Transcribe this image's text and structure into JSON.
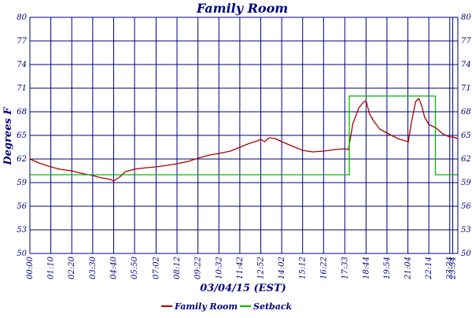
{
  "chart_data": {
    "type": "line",
    "title": "Family Room",
    "xlabel": "03/04/15 (EST)",
    "ylabel": "Degrees F",
    "ylim": [
      50,
      80
    ],
    "xlim_hours": [
      0,
      23.85
    ],
    "yticks": [
      50,
      53,
      56,
      59,
      62,
      65,
      68,
      71,
      74,
      77,
      80
    ],
    "xtick_labels": [
      "00:00",
      "01:10",
      "02:20",
      "03:30",
      "04:40",
      "05:50",
      "07:02",
      "08:12",
      "09:22",
      "10:32",
      "11:42",
      "12:52",
      "14:02",
      "15:12",
      "16:22",
      "17:33",
      "18:44",
      "19:54",
      "21:04",
      "22:14",
      "23:24",
      "23:34"
    ],
    "grid": true,
    "legend_position": "bottom",
    "series": [
      {
        "name": "Family Room",
        "color": "#aa0000",
        "x": [
          "00:00",
          "00:30",
          "01:10",
          "01:40",
          "02:20",
          "02:50",
          "03:30",
          "04:00",
          "04:30",
          "04:40",
          "05:00",
          "05:20",
          "05:50",
          "06:30",
          "07:02",
          "07:40",
          "08:12",
          "08:50",
          "09:22",
          "10:00",
          "10:32",
          "11:10",
          "11:42",
          "12:15",
          "12:40",
          "12:52",
          "13:05",
          "13:20",
          "13:40",
          "14:02",
          "14:40",
          "15:12",
          "15:45",
          "16:22",
          "17:00",
          "17:33",
          "17:45",
          "18:00",
          "18:20",
          "18:35",
          "18:44",
          "18:55",
          "19:10",
          "19:30",
          "19:54",
          "20:30",
          "21:04",
          "21:05",
          "21:15",
          "21:30",
          "21:40",
          "21:50",
          "22:00",
          "22:14",
          "22:40",
          "23:00",
          "23:24",
          "23:34",
          "23:50"
        ],
        "y": [
          62,
          61.5,
          61,
          60.7,
          60.5,
          60.2,
          59.9,
          59.6,
          59.4,
          59.2,
          59.7,
          60.4,
          60.7,
          60.9,
          61,
          61.2,
          61.4,
          61.7,
          62.1,
          62.5,
          62.7,
          63,
          63.5,
          64,
          64.3,
          64.5,
          64.2,
          64.7,
          64.6,
          64.2,
          63.6,
          63.1,
          62.9,
          63,
          63.2,
          63.3,
          63.2,
          66.5,
          68.5,
          69.2,
          69.4,
          67.8,
          66.8,
          65.8,
          65.3,
          64.6,
          64.2,
          64.1,
          66.5,
          69.3,
          69.7,
          68.8,
          67.3,
          66.4,
          65.9,
          65.2,
          64.8,
          64.8,
          64.6
        ]
      },
      {
        "name": "Setback",
        "color": "#00bb00",
        "x": [
          "00:00",
          "17:48",
          "17:48",
          "22:36",
          "22:36",
          "23:50"
        ],
        "y": [
          60,
          60,
          70,
          70,
          60,
          60
        ]
      }
    ]
  },
  "legend": {
    "items": [
      {
        "label": "Family Room",
        "color": "#aa0000"
      },
      {
        "label": "Setback",
        "color": "#00bb00"
      }
    ]
  }
}
